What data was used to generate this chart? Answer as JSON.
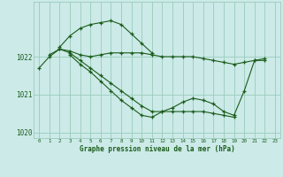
{
  "title": "Graphe pression niveau de la mer (hPa)",
  "background_color": "#cceae8",
  "grid_color": "#99ccbb",
  "line_color": "#1a5c1a",
  "series1": {
    "x": [
      0,
      1,
      2,
      3,
      4,
      5,
      6,
      7,
      8,
      9,
      10,
      11,
      12,
      13,
      14,
      15,
      16,
      17,
      18,
      19,
      20,
      21,
      22
    ],
    "y": [
      1021.7,
      1022.0,
      1022.2,
      1022.15,
      1022.05,
      1022.0,
      1022.05,
      1022.1,
      1022.1,
      1022.1,
      1022.1,
      1022.05,
      1022.0,
      1022.0,
      1022.0,
      1022.0,
      1021.95,
      1021.9,
      1021.85,
      1021.8,
      1021.85,
      1021.9,
      1021.9
    ]
  },
  "series2": {
    "x": [
      2,
      3,
      4,
      5,
      6,
      7,
      8,
      9,
      10,
      11
    ],
    "y": [
      1022.25,
      1022.55,
      1022.75,
      1022.85,
      1022.9,
      1022.95,
      1022.85,
      1022.6,
      1022.35,
      1022.1
    ]
  },
  "series3": {
    "x": [
      1,
      2,
      3,
      4,
      5,
      6,
      7,
      8,
      9,
      10,
      11,
      12,
      13,
      14,
      15,
      16,
      17,
      18,
      19
    ],
    "y": [
      1022.05,
      1022.2,
      1022.1,
      1021.9,
      1021.7,
      1021.5,
      1021.3,
      1021.1,
      1020.9,
      1020.7,
      1020.55,
      1020.55,
      1020.55,
      1020.55,
      1020.55,
      1020.55,
      1020.5,
      1020.45,
      1020.4
    ]
  },
  "series4": {
    "x": [
      3,
      4,
      5,
      6,
      7,
      8,
      9,
      10,
      11,
      12,
      13,
      14,
      15,
      16,
      17,
      18,
      19,
      20,
      21,
      22
    ],
    "y": [
      1022.05,
      1021.8,
      1021.6,
      1021.35,
      1021.1,
      1020.85,
      1020.65,
      1020.45,
      1020.4,
      1020.55,
      1020.65,
      1020.8,
      1020.9,
      1020.85,
      1020.75,
      1020.55,
      1020.45,
      1021.1,
      1021.9,
      1021.95
    ]
  },
  "ylim": [
    1019.85,
    1023.45
  ],
  "yticks": [
    1020,
    1021,
    1022
  ],
  "xlim": [
    -0.5,
    23.5
  ],
  "xticks": [
    0,
    1,
    2,
    3,
    4,
    5,
    6,
    7,
    8,
    9,
    10,
    11,
    12,
    13,
    14,
    15,
    16,
    17,
    18,
    19,
    20,
    21,
    22,
    23
  ],
  "figsize": [
    3.2,
    2.0
  ],
  "dpi": 100
}
